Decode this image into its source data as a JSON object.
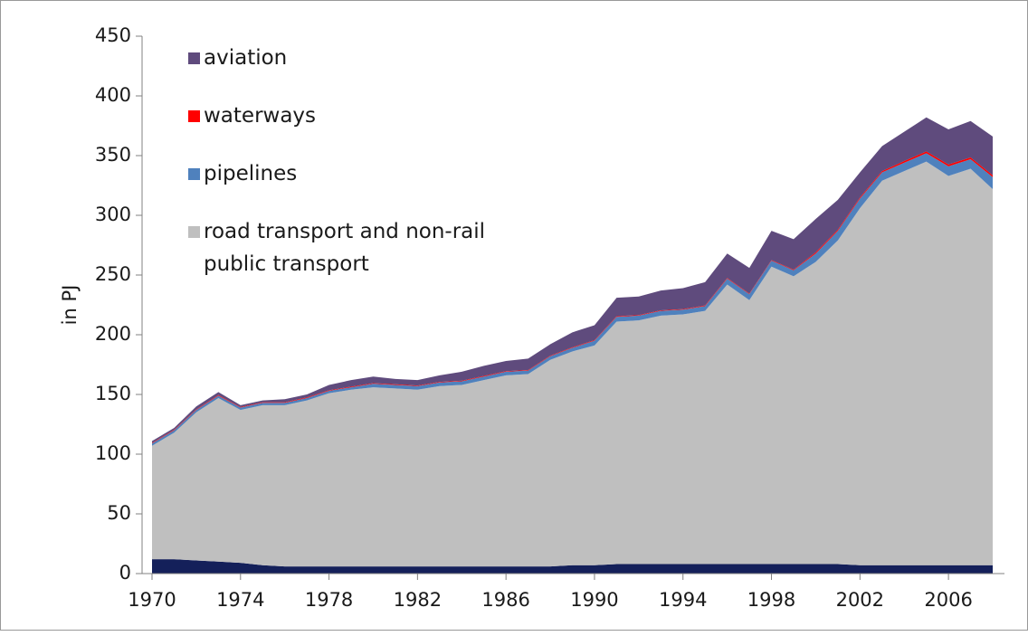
{
  "chart_data": {
    "type": "stacked_area",
    "y_label": "in PJ",
    "x": [
      1970,
      1971,
      1972,
      1973,
      1974,
      1975,
      1976,
      1977,
      1978,
      1979,
      1980,
      1981,
      1982,
      1983,
      1984,
      1985,
      1986,
      1987,
      1988,
      1989,
      1990,
      1991,
      1992,
      1993,
      1994,
      1995,
      1996,
      1997,
      1998,
      1999,
      2000,
      2001,
      2002,
      2003,
      2004,
      2005,
      2006,
      2007,
      2008
    ],
    "xlim": [
      1970,
      2008
    ],
    "xticks": [
      1970,
      1974,
      1978,
      1982,
      1986,
      1990,
      1994,
      1998,
      2002,
      2006
    ],
    "ylim": [
      0,
      450
    ],
    "yticks": [
      0,
      50,
      100,
      150,
      200,
      250,
      300,
      350,
      400,
      450
    ],
    "legend": "upper left",
    "series": [
      {
        "color": "#14205a",
        "values": [
          12,
          12,
          11,
          10,
          9,
          7,
          6,
          6,
          6,
          6,
          6,
          6,
          6,
          6,
          6,
          6,
          6,
          6,
          6,
          7,
          7,
          8,
          8,
          8,
          8,
          8,
          8,
          8,
          8,
          8,
          8,
          8,
          7,
          7,
          7,
          7,
          7,
          7,
          7
        ]
      },
      {
        "name": "road transport and non-rail public transport",
        "color": "#bfbfbf",
        "values": [
          95,
          106,
          124,
          137,
          128,
          134,
          135,
          139,
          145,
          148,
          150,
          149,
          148,
          151,
          152,
          156,
          160,
          161,
          173,
          179,
          184,
          203,
          204,
          208,
          209,
          212,
          234,
          221,
          249,
          241,
          253,
          271,
          299,
          322,
          330,
          338,
          326,
          332,
          315
        ]
      },
      {
        "name": "pipelines",
        "color": "#4f81bd",
        "values": [
          2,
          2,
          2,
          2,
          2,
          2,
          2,
          2,
          2,
          2,
          3,
          3,
          3,
          3,
          3,
          3,
          3,
          3,
          3,
          3,
          4,
          4,
          4,
          4,
          4,
          4,
          5,
          5,
          5,
          5,
          7,
          8,
          8,
          7,
          7,
          7,
          8,
          8,
          10
        ]
      },
      {
        "name": "waterways",
        "color": "#ff0000",
        "values": [
          0.5,
          0.5,
          0.5,
          0.5,
          0.5,
          0.5,
          0.5,
          0.5,
          0.5,
          0.5,
          0.5,
          0.5,
          0.5,
          0.5,
          0.5,
          0.5,
          0.5,
          0.5,
          0.5,
          0.5,
          0.5,
          0.5,
          0.5,
          0.5,
          0.5,
          0.5,
          0.5,
          0.5,
          0.5,
          0.5,
          1,
          1,
          1,
          1,
          1.5,
          1.5,
          1.5,
          1.5,
          1.5
        ]
      },
      {
        "name": "aviation",
        "color": "#5f4b7d",
        "values": [
          1.5,
          1.5,
          2.5,
          2.5,
          1.5,
          1.5,
          2.5,
          2.5,
          4.5,
          5.5,
          5.5,
          4.5,
          4.5,
          5.5,
          7.5,
          8.5,
          8.5,
          9.5,
          9.5,
          12.5,
          12.5,
          15.5,
          15.5,
          16.5,
          17.5,
          19.5,
          20.5,
          21.5,
          24.5,
          25.5,
          28,
          25,
          21,
          21,
          24.5,
          28.5,
          29.5,
          30.5,
          32.5
        ]
      }
    ]
  }
}
